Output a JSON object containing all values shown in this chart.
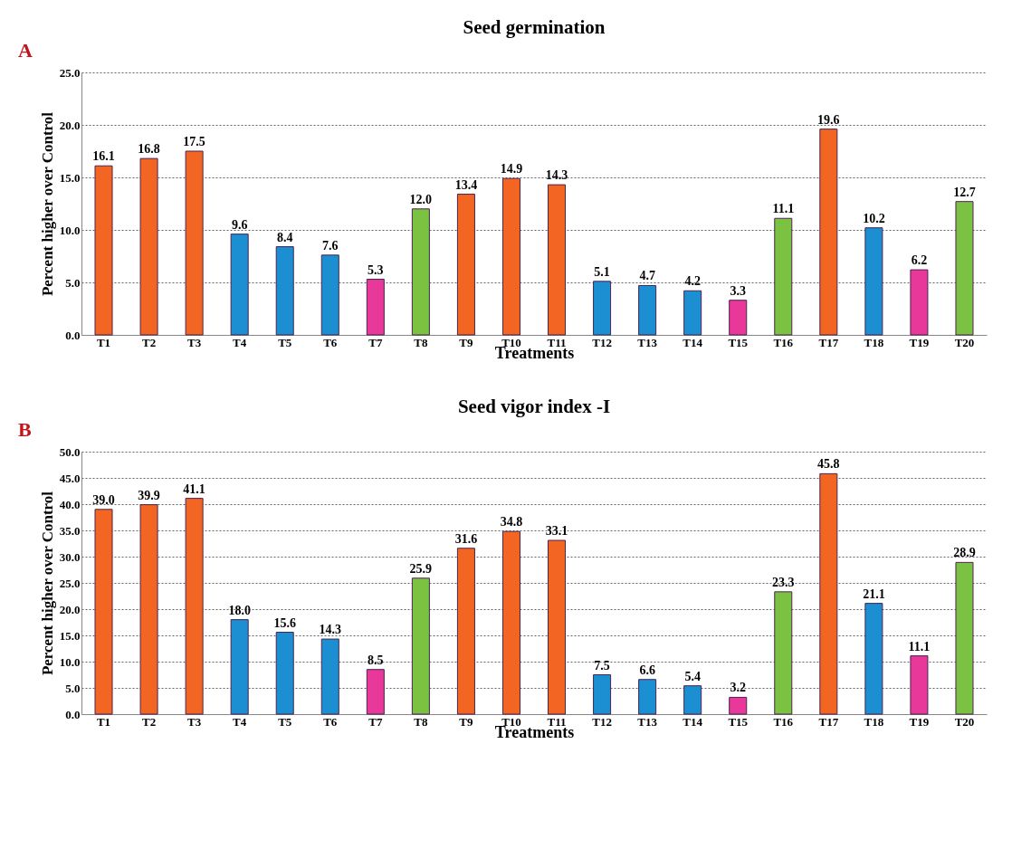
{
  "chart_data": [
    {
      "type": "bar",
      "title": "Seed germination",
      "xlabel": "Treatments",
      "ylabel": "Percent higher over Control",
      "annotations": [
        "A"
      ],
      "categories": [
        "T1",
        "T2",
        "T3",
        "T4",
        "T5",
        "T6",
        "T7",
        "T8",
        "T9",
        "T10",
        "T11",
        "T12",
        "T13",
        "T14",
        "T15",
        "T16",
        "T17",
        "T18",
        "T19",
        "T20"
      ],
      "values": [
        16.1,
        16.8,
        17.5,
        9.6,
        8.4,
        7.6,
        5.3,
        12.0,
        13.4,
        14.9,
        14.3,
        5.1,
        4.7,
        4.2,
        3.3,
        11.1,
        19.6,
        10.2,
        6.2,
        12.7
      ],
      "value_labels": [
        "16.1",
        "16.8",
        "17.5",
        "9.6",
        "8.4",
        "7.6",
        "5.3",
        "12.0",
        "13.4",
        "14.9",
        "14.3",
        "5.1",
        "4.7",
        "4.2",
        "3.3",
        "11.1",
        "19.6",
        "10.2",
        "6.2",
        "12.7"
      ],
      "colors": [
        "#f26522",
        "#f26522",
        "#f26522",
        "#1b8fd2",
        "#1b8fd2",
        "#1b8fd2",
        "#e8389a",
        "#7cc242",
        "#f26522",
        "#f26522",
        "#f26522",
        "#1b8fd2",
        "#1b8fd2",
        "#1b8fd2",
        "#e8389a",
        "#7cc242",
        "#f26522",
        "#1b8fd2",
        "#e8389a",
        "#7cc242"
      ],
      "ylim": [
        0,
        25
      ],
      "yticks": [
        {
          "value": 0,
          "label": "0.0"
        },
        {
          "value": 5,
          "label": "5.0"
        },
        {
          "value": 10,
          "label": "10.0"
        },
        {
          "value": 15,
          "label": "15.0"
        },
        {
          "value": 20,
          "label": "20.0"
        },
        {
          "value": 25,
          "label": "25.0"
        }
      ],
      "grid": "y"
    },
    {
      "type": "bar",
      "title": "Seed vigor index -I",
      "xlabel": "Treatments",
      "ylabel": "Percent higher over Control",
      "annotations": [
        "B"
      ],
      "categories": [
        "T1",
        "T2",
        "T3",
        "T4",
        "T5",
        "T6",
        "T7",
        "T8",
        "T9",
        "T10",
        "T11",
        "T12",
        "T13",
        "T14",
        "T15",
        "T16",
        "T17",
        "T18",
        "T19",
        "T20"
      ],
      "values": [
        39.0,
        39.9,
        41.1,
        18.0,
        15.6,
        14.3,
        8.5,
        25.9,
        31.6,
        34.8,
        33.1,
        7.5,
        6.6,
        5.4,
        3.2,
        23.3,
        45.8,
        21.1,
        11.1,
        28.9
      ],
      "value_labels": [
        "39.0",
        "39.9",
        "41.1",
        "18.0",
        "15.6",
        "14.3",
        "8.5",
        "25.9",
        "31.6",
        "34.8",
        "33.1",
        "7.5",
        "6.6",
        "5.4",
        "3.2",
        "23.3",
        "45.8",
        "21.1",
        "11.1",
        "28.9"
      ],
      "colors": [
        "#f26522",
        "#f26522",
        "#f26522",
        "#1b8fd2",
        "#1b8fd2",
        "#1b8fd2",
        "#e8389a",
        "#7cc242",
        "#f26522",
        "#f26522",
        "#f26522",
        "#1b8fd2",
        "#1b8fd2",
        "#1b8fd2",
        "#e8389a",
        "#7cc242",
        "#f26522",
        "#1b8fd2",
        "#e8389a",
        "#7cc242"
      ],
      "ylim": [
        0,
        50
      ],
      "yticks": [
        {
          "value": 0,
          "label": "0.0"
        },
        {
          "value": 5,
          "label": "5.0"
        },
        {
          "value": 10,
          "label": "10.0"
        },
        {
          "value": 15,
          "label": "15.0"
        },
        {
          "value": 20,
          "label": "20.0"
        },
        {
          "value": 25,
          "label": "25.0"
        },
        {
          "value": 30,
          "label": "30.0"
        },
        {
          "value": 35,
          "label": "35.0"
        },
        {
          "value": 40,
          "label": "40.0"
        },
        {
          "value": 45,
          "label": "45.0"
        },
        {
          "value": 50,
          "label": "50.0"
        }
      ],
      "grid": "y"
    }
  ]
}
